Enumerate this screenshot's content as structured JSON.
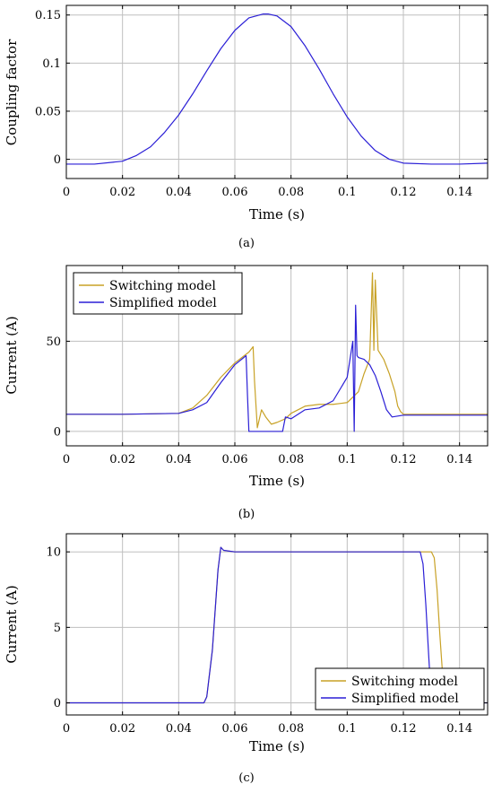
{
  "colors": {
    "switching": "#c8a227",
    "simplified": "#2b1fd6"
  },
  "chart_data": [
    {
      "id": "a",
      "type": "line",
      "caption": "(a)",
      "xlabel": "Time (s)",
      "ylabel": "Coupling factor",
      "xlim": [
        0,
        0.15
      ],
      "ylim": [
        -0.02,
        0.16
      ],
      "xticks": [
        0,
        0.02,
        0.04,
        0.06,
        0.08,
        0.1,
        0.12,
        0.14
      ],
      "xtick_labels": [
        "0",
        "0.02",
        "0.04",
        "0.06",
        "0.08",
        "0.1",
        "0.12",
        "0.14"
      ],
      "yticks": [
        0,
        0.05,
        0.1,
        0.15
      ],
      "ytick_labels": [
        "0",
        "0.05",
        "0.1",
        "0.15"
      ],
      "grid": true,
      "series": [
        {
          "color": "#2b1fd6",
          "x": [
            0,
            0.01,
            0.02,
            0.025,
            0.03,
            0.035,
            0.04,
            0.045,
            0.05,
            0.055,
            0.06,
            0.065,
            0.07,
            0.072,
            0.075,
            0.08,
            0.085,
            0.09,
            0.095,
            0.1,
            0.105,
            0.11,
            0.115,
            0.12,
            0.13,
            0.14,
            0.15
          ],
          "y": [
            -0.005,
            -0.005,
            -0.002,
            0.004,
            0.013,
            0.028,
            0.046,
            0.068,
            0.092,
            0.115,
            0.134,
            0.147,
            0.151,
            0.151,
            0.149,
            0.138,
            0.118,
            0.094,
            0.068,
            0.044,
            0.024,
            0.009,
            0.0,
            -0.004,
            -0.005,
            -0.005,
            -0.004
          ]
        }
      ]
    },
    {
      "id": "b",
      "type": "line",
      "caption": "(b)",
      "xlabel": "Time (s)",
      "ylabel": "Current (A)",
      "xlim": [
        0,
        0.15
      ],
      "ylim": [
        -8,
        92
      ],
      "xticks": [
        0,
        0.02,
        0.04,
        0.06,
        0.08,
        0.1,
        0.12,
        0.14
      ],
      "xtick_labels": [
        "0",
        "0.02",
        "0.04",
        "0.06",
        "0.08",
        "0.1",
        "0.12",
        "0.14"
      ],
      "yticks": [
        0,
        50
      ],
      "ytick_labels": [
        "0",
        "50"
      ],
      "grid": true,
      "legend": {
        "position": "top-left",
        "entries": [
          "Switching model",
          "Simplified model"
        ]
      },
      "series": [
        {
          "name": "Switching model",
          "color": "#c8a227",
          "x": [
            0,
            0.02,
            0.04,
            0.045,
            0.05,
            0.055,
            0.06,
            0.065,
            0.0665,
            0.067,
            0.068,
            0.0695,
            0.071,
            0.073,
            0.075,
            0.078,
            0.08,
            0.085,
            0.09,
            0.095,
            0.1,
            0.104,
            0.106,
            0.108,
            0.109,
            0.1095,
            0.11,
            0.111,
            0.113,
            0.115,
            0.117,
            0.118,
            0.119,
            0.12,
            0.13,
            0.14,
            0.15
          ],
          "y": [
            9.5,
            9.5,
            10,
            13,
            20,
            30,
            38,
            44,
            47,
            28,
            2,
            12,
            8,
            4,
            5,
            7,
            10,
            14,
            15,
            15,
            16,
            22,
            32,
            40,
            88,
            45,
            84,
            45,
            40,
            32,
            22,
            14,
            11,
            9.5,
            9.5,
            9.5,
            9.5
          ]
        },
        {
          "name": "Simplified model",
          "color": "#2b1fd6",
          "x": [
            0,
            0.02,
            0.04,
            0.045,
            0.05,
            0.055,
            0.06,
            0.064,
            0.0645,
            0.065,
            0.07,
            0.075,
            0.077,
            0.078,
            0.08,
            0.085,
            0.09,
            0.095,
            0.1,
            0.102,
            0.1025,
            0.103,
            0.1035,
            0.104,
            0.106,
            0.108,
            0.11,
            0.112,
            0.114,
            0.116,
            0.118,
            0.12,
            0.13,
            0.15
          ],
          "y": [
            9.5,
            9.5,
            10,
            12,
            16,
            27,
            37,
            42,
            20,
            0,
            0,
            0,
            0,
            8,
            7,
            12,
            13,
            17,
            30,
            50,
            0,
            70,
            42,
            41,
            40,
            37,
            31,
            22,
            12,
            8,
            8.5,
            9,
            9,
            9
          ]
        }
      ]
    },
    {
      "id": "c",
      "type": "line",
      "caption": "(c)",
      "xlabel": "Time (s)",
      "ylabel": "Current (A)",
      "xlim": [
        0,
        0.15
      ],
      "ylim": [
        -0.8,
        11.2
      ],
      "xticks": [
        0,
        0.02,
        0.04,
        0.06,
        0.08,
        0.1,
        0.12,
        0.14
      ],
      "xtick_labels": [
        "0",
        "0.02",
        "0.04",
        "0.06",
        "0.08",
        "0.1",
        "0.12",
        "0.14"
      ],
      "yticks": [
        0,
        5,
        10
      ],
      "ytick_labels": [
        "0",
        "5",
        "10"
      ],
      "grid": true,
      "legend": {
        "position": "bottom-right",
        "entries": [
          "Switching model",
          "Simplified model"
        ]
      },
      "series": [
        {
          "name": "Switching model",
          "color": "#c8a227",
          "x": [
            0,
            0.049,
            0.05,
            0.052,
            0.054,
            0.055,
            0.056,
            0.06,
            0.13,
            0.131,
            0.132,
            0.133,
            0.134,
            0.135
          ],
          "y": [
            0,
            0,
            0.4,
            3.5,
            8.8,
            10.3,
            10.1,
            10,
            10,
            9.6,
            7.5,
            4.5,
            1.8,
            0
          ]
        },
        {
          "name": "Simplified model",
          "color": "#2b1fd6",
          "x": [
            0,
            0.049,
            0.05,
            0.052,
            0.054,
            0.055,
            0.056,
            0.06,
            0.126,
            0.127,
            0.128,
            0.129,
            0.13,
            0.15
          ],
          "y": [
            0,
            0,
            0.4,
            3.5,
            8.8,
            10.3,
            10.1,
            10,
            10,
            9.2,
            6.5,
            3.2,
            0,
            0
          ]
        }
      ]
    }
  ]
}
